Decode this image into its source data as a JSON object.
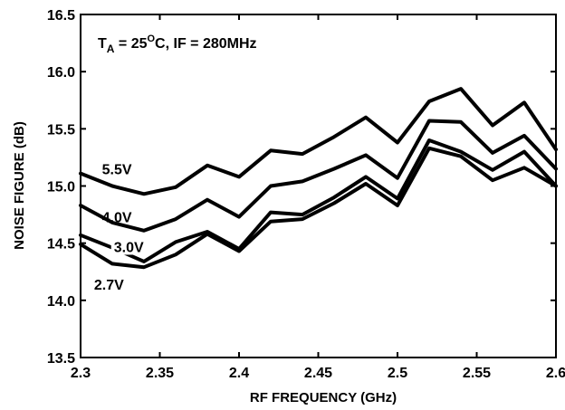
{
  "chart_data": {
    "type": "line",
    "title": "",
    "xlabel": "RF FREQUENCY (GHz)",
    "ylabel": "NOISE FIGURE (dB)",
    "xlim": [
      2.3,
      2.6
    ],
    "ylim": [
      13.5,
      16.5
    ],
    "x_ticks": [
      "2.3",
      "2.35",
      "2.4",
      "2.45",
      "2.5",
      "2.55",
      "2.6"
    ],
    "y_ticks": [
      "13.5",
      "14.0",
      "14.5",
      "15.0",
      "15.5",
      "16.0",
      "16.5"
    ],
    "x": [
      2.3,
      2.32,
      2.34,
      2.36,
      2.38,
      2.4,
      2.42,
      2.44,
      2.46,
      2.48,
      2.5,
      2.52,
      2.54,
      2.56,
      2.58,
      2.6
    ],
    "grid": false,
    "annotation": {
      "t_main": "T",
      "t_sub": "A",
      "eq_mid": " = 25",
      "deg_sup": "O",
      "rest": "C, IF = 280MHz"
    },
    "series": [
      {
        "name": "5.5V",
        "values": [
          15.11,
          15.0,
          14.93,
          14.99,
          15.18,
          15.08,
          15.31,
          15.28,
          15.43,
          15.6,
          15.38,
          15.74,
          15.85,
          15.53,
          15.73,
          15.32
        ]
      },
      {
        "name": "4.0V",
        "values": [
          14.83,
          14.68,
          14.61,
          14.71,
          14.88,
          14.73,
          15.0,
          15.04,
          15.15,
          15.27,
          15.07,
          15.57,
          15.56,
          15.29,
          15.44,
          15.15
        ]
      },
      {
        "name": "3.0V",
        "values": [
          14.57,
          14.46,
          14.34,
          14.51,
          14.6,
          14.45,
          14.77,
          14.75,
          14.9,
          15.08,
          14.89,
          15.4,
          15.3,
          15.14,
          15.3,
          15.0
        ]
      },
      {
        "name": "2.7V",
        "values": [
          14.49,
          14.32,
          14.29,
          14.4,
          14.58,
          14.43,
          14.69,
          14.71,
          14.85,
          15.02,
          14.83,
          15.33,
          15.26,
          15.05,
          15.16,
          15.0
        ]
      }
    ]
  }
}
